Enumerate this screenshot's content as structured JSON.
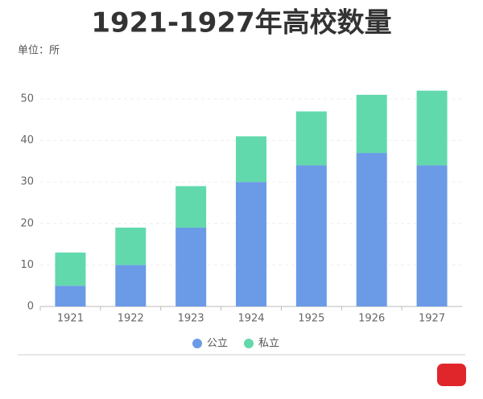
{
  "chart_data": {
    "type": "stacked-bar",
    "title": "1921-1927年高校数量",
    "unit_label": "单位：所",
    "categories": [
      "1921",
      "1922",
      "1923",
      "1924",
      "1925",
      "1926",
      "1927"
    ],
    "series": [
      {
        "name": "公立",
        "color": "#6b9be6",
        "values": [
          5,
          10,
          19,
          30,
          34,
          37,
          34
        ]
      },
      {
        "name": "私立",
        "color": "#62d9ac",
        "values": [
          8,
          9,
          10,
          11,
          13,
          14,
          18
        ]
      }
    ],
    "ylim": [
      0,
      50
    ],
    "yticks": [
      0,
      10,
      20,
      30,
      40,
      50
    ],
    "grid": true,
    "legend": "bottom"
  }
}
